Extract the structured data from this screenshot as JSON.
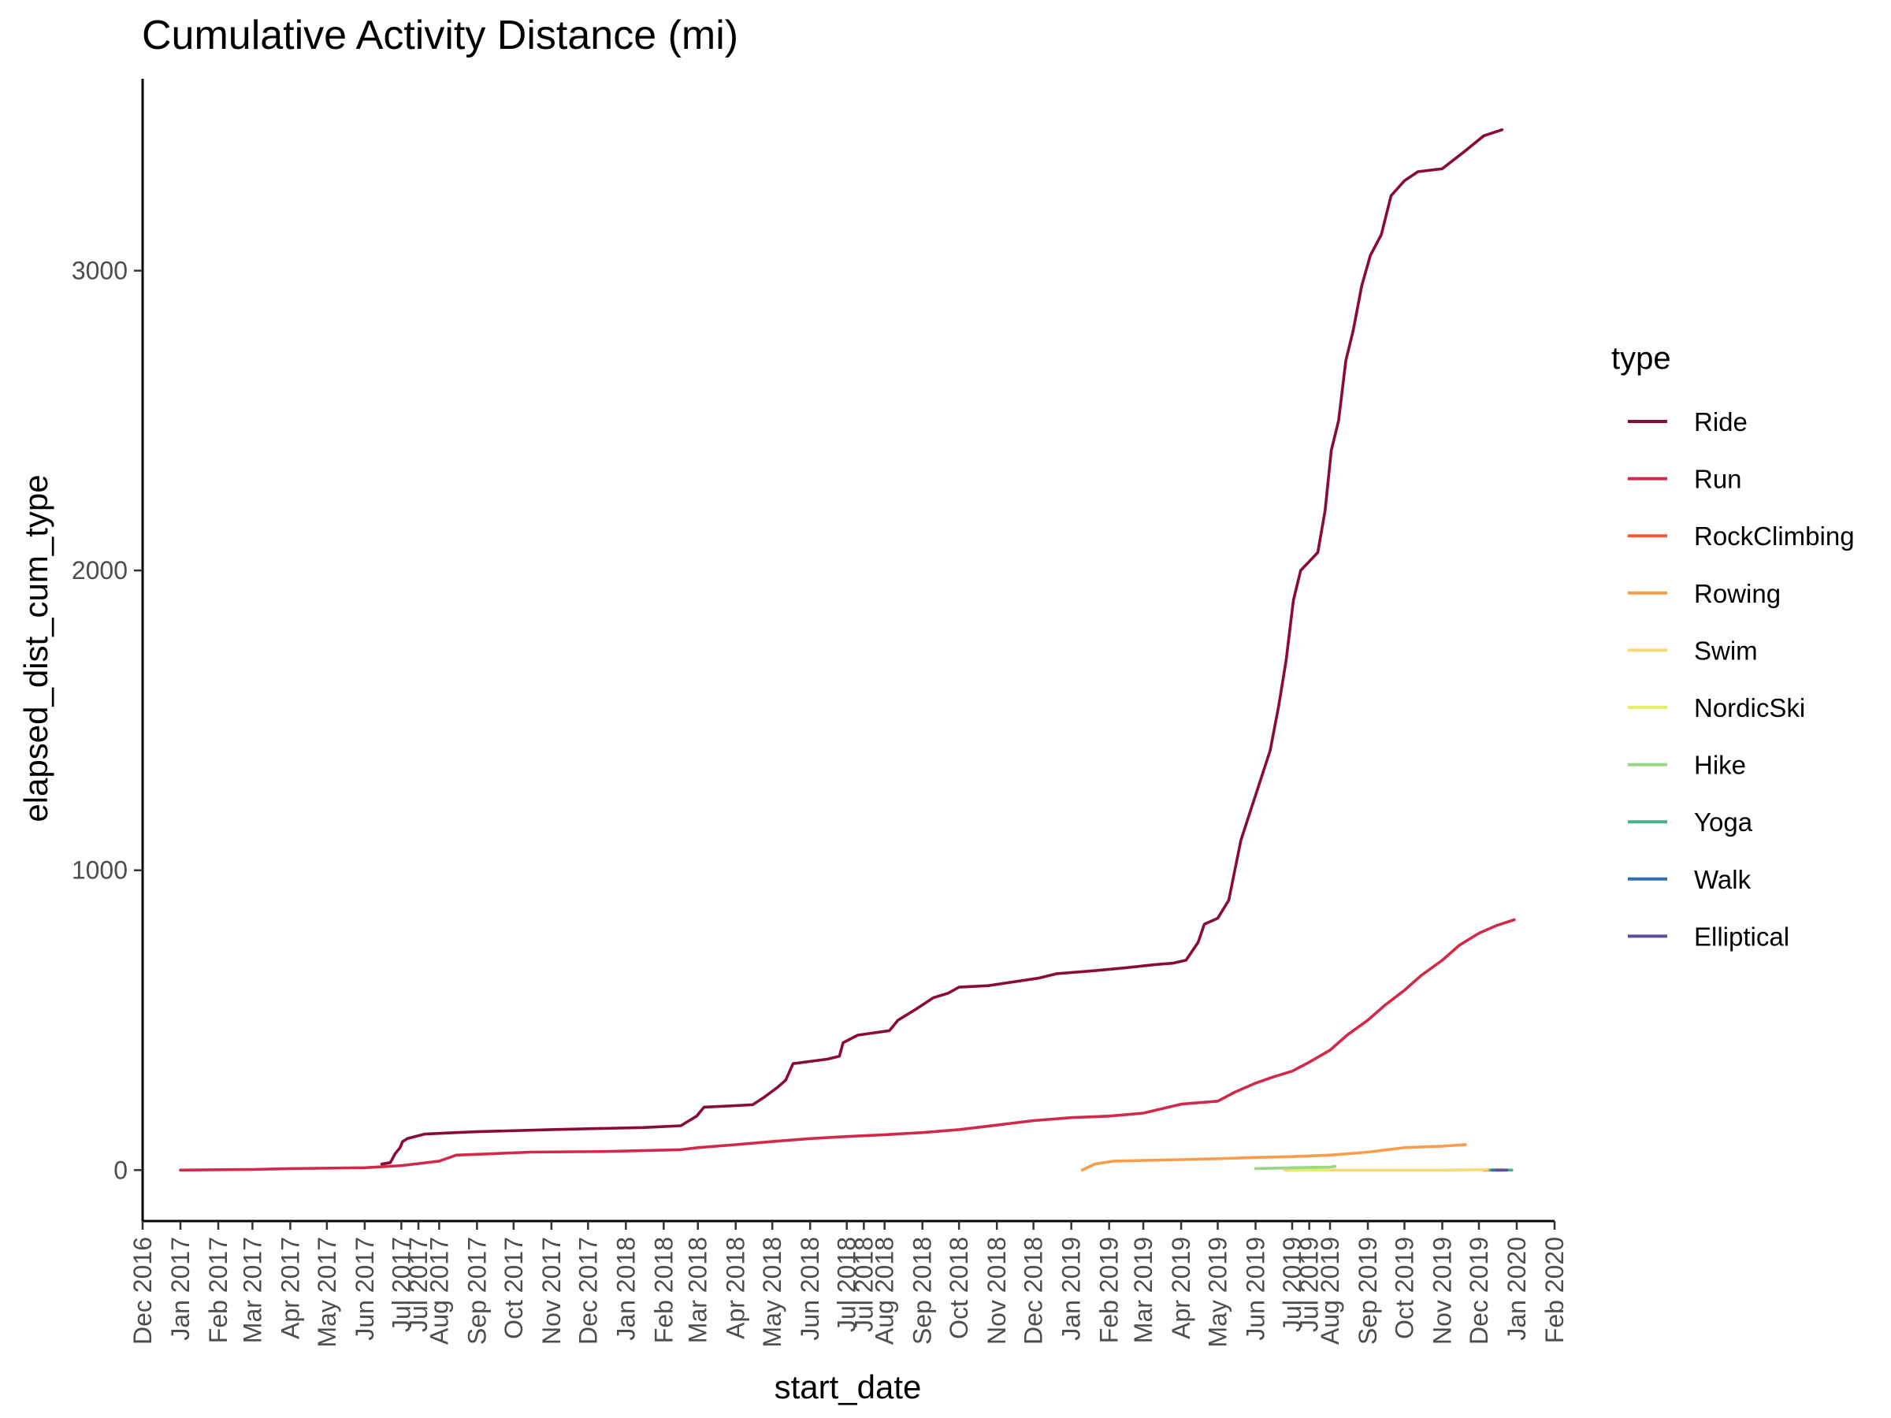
{
  "chart_data": {
    "type": "line",
    "title": "Cumulative Activity Distance (mi)",
    "xlabel": "start_date",
    "ylabel": "elapsed_dist_cum_type",
    "xlim": [
      "2016-12-01",
      "2020-02-01"
    ],
    "ylim": [
      -170,
      3640
    ],
    "grid": false,
    "legend": {
      "title": "type",
      "position": "right"
    },
    "x_ticks": [
      "2016-12-01",
      "2017-01-01",
      "2017-02-01",
      "2017-03-01",
      "2017-04-01",
      "2017-05-01",
      "2017-06-01",
      "2017-07-01",
      "2017-07-15",
      "2017-08-01",
      "2017-09-01",
      "2017-10-01",
      "2017-11-01",
      "2017-12-01",
      "2018-01-01",
      "2018-02-01",
      "2018-03-01",
      "2018-04-01",
      "2018-05-01",
      "2018-06-01",
      "2018-07-01",
      "2018-07-15",
      "2018-08-01",
      "2018-09-01",
      "2018-10-01",
      "2018-11-01",
      "2018-12-01",
      "2019-01-01",
      "2019-02-01",
      "2019-03-01",
      "2019-04-01",
      "2019-05-01",
      "2019-06-01",
      "2019-07-01",
      "2019-07-15",
      "2019-08-01",
      "2019-09-01",
      "2019-10-01",
      "2019-11-01",
      "2019-12-01",
      "2020-01-01",
      "2020-02-01"
    ],
    "x_tick_labels": [
      "Dec 2016",
      "Jan 2017",
      "Feb 2017",
      "Mar 2017",
      "Apr 2017",
      "May 2017",
      "Jun 2017",
      "Jul 2017",
      "Jul 2017",
      "Aug 2017",
      "Sep 2017",
      "Oct 2017",
      "Nov 2017",
      "Dec 2017",
      "Jan 2018",
      "Feb 2018",
      "Mar 2018",
      "Apr 2018",
      "May 2018",
      "Jun 2018",
      "Jul 2018",
      "Jul 2018",
      "Aug 2018",
      "Sep 2018",
      "Oct 2018",
      "Nov 2018",
      "Dec 2018",
      "Jan 2019",
      "Feb 2019",
      "Mar 2019",
      "Apr 2019",
      "May 2019",
      "Jun 2019",
      "Jul 2019",
      "Jul 2019",
      "Aug 2019",
      "Sep 2019",
      "Oct 2019",
      "Nov 2019",
      "Dec 2019",
      "Jan 2020",
      "Feb 2020"
    ],
    "y_ticks": [
      0,
      1000,
      2000,
      3000
    ],
    "y_tick_labels": [
      "0",
      "1000",
      "2000",
      "3000"
    ],
    "series": [
      {
        "name": "Ride",
        "color": "#8a0a3a",
        "points": [
          [
            "2017-06-15",
            20
          ],
          [
            "2017-06-22",
            25
          ],
          [
            "2017-06-26",
            55
          ],
          [
            "2017-06-30",
            75
          ],
          [
            "2017-07-02",
            95
          ],
          [
            "2017-07-06",
            105
          ],
          [
            "2017-07-20",
            120
          ],
          [
            "2017-08-15",
            125
          ],
          [
            "2017-09-01",
            128
          ],
          [
            "2017-11-01",
            135
          ],
          [
            "2018-01-15",
            142
          ],
          [
            "2018-02-15",
            148
          ],
          [
            "2018-02-28",
            180
          ],
          [
            "2018-03-06",
            210
          ],
          [
            "2018-04-01",
            215
          ],
          [
            "2018-04-15",
            218
          ],
          [
            "2018-04-25",
            245
          ],
          [
            "2018-05-05",
            275
          ],
          [
            "2018-05-12",
            300
          ],
          [
            "2018-05-18",
            355
          ],
          [
            "2018-06-15",
            370
          ],
          [
            "2018-06-25",
            380
          ],
          [
            "2018-06-28",
            425
          ],
          [
            "2018-07-10",
            450
          ],
          [
            "2018-08-05",
            465
          ],
          [
            "2018-08-12",
            500
          ],
          [
            "2018-08-28",
            540
          ],
          [
            "2018-09-10",
            575
          ],
          [
            "2018-09-22",
            590
          ],
          [
            "2018-10-01",
            610
          ],
          [
            "2018-10-25",
            615
          ],
          [
            "2018-12-05",
            640
          ],
          [
            "2018-12-20",
            655
          ],
          [
            "2019-01-20",
            665
          ],
          [
            "2019-02-15",
            675
          ],
          [
            "2019-03-10",
            685
          ],
          [
            "2019-03-25",
            690
          ],
          [
            "2019-04-05",
            700
          ],
          [
            "2019-04-15",
            760
          ],
          [
            "2019-04-20",
            820
          ],
          [
            "2019-05-01",
            840
          ],
          [
            "2019-05-10",
            900
          ],
          [
            "2019-05-15",
            1000
          ],
          [
            "2019-05-20",
            1100
          ],
          [
            "2019-05-28",
            1200
          ],
          [
            "2019-06-05",
            1300
          ],
          [
            "2019-06-13",
            1400
          ],
          [
            "2019-06-20",
            1550
          ],
          [
            "2019-06-26",
            1700
          ],
          [
            "2019-07-02",
            1900
          ],
          [
            "2019-07-08",
            2000
          ],
          [
            "2019-07-15",
            2030
          ],
          [
            "2019-07-22",
            2060
          ],
          [
            "2019-07-28",
            2200
          ],
          [
            "2019-08-02",
            2400
          ],
          [
            "2019-08-08",
            2500
          ],
          [
            "2019-08-14",
            2700
          ],
          [
            "2019-08-20",
            2800
          ],
          [
            "2019-08-27",
            2950
          ],
          [
            "2019-09-03",
            3050
          ],
          [
            "2019-09-12",
            3120
          ],
          [
            "2019-09-20",
            3250
          ],
          [
            "2019-10-01",
            3300
          ],
          [
            "2019-10-12",
            3330
          ],
          [
            "2019-11-01",
            3340
          ],
          [
            "2019-11-20",
            3400
          ],
          [
            "2019-12-05",
            3450
          ],
          [
            "2019-12-20",
            3470
          ]
        ]
      },
      {
        "name": "Run",
        "color": "#d2284a",
        "points": [
          [
            "2017-01-01",
            0
          ],
          [
            "2017-03-01",
            2
          ],
          [
            "2017-04-01",
            5
          ],
          [
            "2017-06-01",
            8
          ],
          [
            "2017-07-01",
            15
          ],
          [
            "2017-08-01",
            30
          ],
          [
            "2017-08-15",
            50
          ],
          [
            "2017-09-15",
            55
          ],
          [
            "2017-10-15",
            60
          ],
          [
            "2017-12-15",
            62
          ],
          [
            "2018-02-15",
            68
          ],
          [
            "2018-03-01",
            75
          ],
          [
            "2018-04-01",
            85
          ],
          [
            "2018-05-01",
            95
          ],
          [
            "2018-06-01",
            105
          ],
          [
            "2018-07-01",
            112
          ],
          [
            "2018-08-01",
            118
          ],
          [
            "2018-09-01",
            125
          ],
          [
            "2018-10-01",
            135
          ],
          [
            "2018-11-01",
            150
          ],
          [
            "2018-12-01",
            165
          ],
          [
            "2019-01-01",
            175
          ],
          [
            "2019-02-01",
            180
          ],
          [
            "2019-03-01",
            190
          ],
          [
            "2019-04-01",
            220
          ],
          [
            "2019-05-01",
            230
          ],
          [
            "2019-05-15",
            260
          ],
          [
            "2019-06-01",
            290
          ],
          [
            "2019-06-15",
            310
          ],
          [
            "2019-07-01",
            330
          ],
          [
            "2019-07-15",
            360
          ],
          [
            "2019-08-01",
            400
          ],
          [
            "2019-08-15",
            450
          ],
          [
            "2019-09-01",
            500
          ],
          [
            "2019-09-15",
            550
          ],
          [
            "2019-10-01",
            600
          ],
          [
            "2019-10-15",
            650
          ],
          [
            "2019-11-01",
            700
          ],
          [
            "2019-11-15",
            750
          ],
          [
            "2019-12-01",
            790
          ],
          [
            "2019-12-15",
            815
          ],
          [
            "2019-12-30",
            835
          ]
        ]
      },
      {
        "name": "RockClimbing",
        "color": "#ef5a36",
        "points": [
          [
            "2019-12-05",
            0
          ],
          [
            "2019-12-22",
            0
          ]
        ]
      },
      {
        "name": "Rowing",
        "color": "#f99d4d",
        "points": [
          [
            "2019-01-10",
            0
          ],
          [
            "2019-01-20",
            20
          ],
          [
            "2019-02-05",
            30
          ],
          [
            "2019-03-01",
            32
          ],
          [
            "2019-04-01",
            35
          ],
          [
            "2019-05-01",
            38
          ],
          [
            "2019-06-01",
            42
          ],
          [
            "2019-07-01",
            45
          ],
          [
            "2019-08-01",
            50
          ],
          [
            "2019-09-01",
            60
          ],
          [
            "2019-10-01",
            75
          ],
          [
            "2019-11-01",
            80
          ],
          [
            "2019-11-20",
            85
          ]
        ]
      },
      {
        "name": "Swim",
        "color": "#fbd775",
        "points": [
          [
            "2019-06-25",
            0
          ],
          [
            "2019-09-01",
            0
          ],
          [
            "2019-11-01",
            0
          ],
          [
            "2019-12-20",
            2
          ]
        ]
      },
      {
        "name": "NordicSki",
        "color": "#e3ee6a",
        "points": [
          [
            "2019-07-01",
            0
          ],
          [
            "2019-08-01",
            0
          ]
        ]
      },
      {
        "name": "Hike",
        "color": "#99d685",
        "points": [
          [
            "2019-06-01",
            5
          ],
          [
            "2019-07-01",
            8
          ],
          [
            "2019-08-01",
            10
          ],
          [
            "2019-08-05",
            12
          ]
        ]
      },
      {
        "name": "Yoga",
        "color": "#44b28f",
        "points": [
          [
            "2019-12-10",
            0
          ],
          [
            "2019-12-28",
            0
          ]
        ]
      },
      {
        "name": "Walk",
        "color": "#2e6fb1",
        "points": [
          [
            "2019-12-12",
            0
          ],
          [
            "2019-12-20",
            0
          ]
        ]
      },
      {
        "name": "Elliptical",
        "color": "#5e4d9e",
        "points": [
          [
            "2019-12-15",
            0
          ],
          [
            "2019-12-24",
            0
          ]
        ]
      }
    ]
  }
}
